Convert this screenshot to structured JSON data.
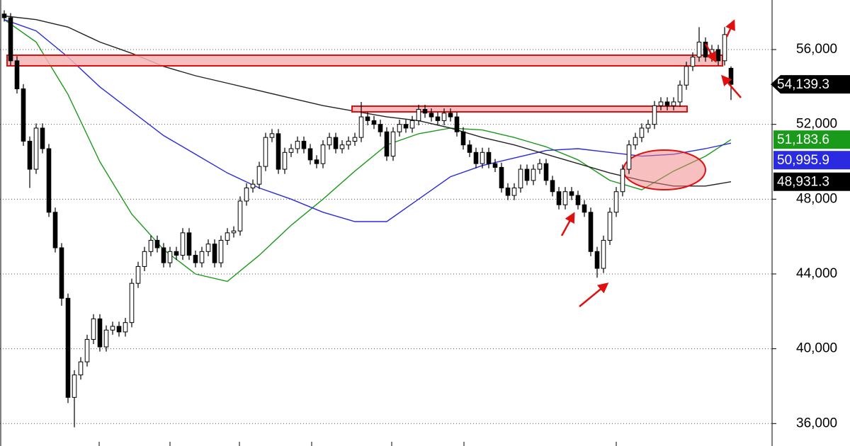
{
  "chart_data": {
    "type": "candlestick",
    "ylim": [
      34800,
      58650
    ],
    "yticks": [
      {
        "value": 36000,
        "label": "36,000"
      },
      {
        "value": 40000,
        "label": "40,000"
      },
      {
        "value": 44000,
        "label": "44,000"
      },
      {
        "value": 48000,
        "label": "48,000"
      },
      {
        "value": 52000,
        "label": "52,000"
      },
      {
        "value": 56000,
        "label": "56,000"
      }
    ],
    "grid": true,
    "up_color": "#ffffff",
    "down_color": "#000000",
    "open": [
      57900,
      57700,
      55400,
      53900,
      51100,
      49600,
      51800,
      50700,
      47300,
      45400,
      42700,
      37400,
      38600,
      39300,
      40500,
      41600,
      40100,
      41000,
      41200,
      40900,
      41400,
      43500,
      44400,
      45200,
      45800,
      45400,
      44600,
      45200,
      45000,
      46200,
      45000,
      44600,
      45200,
      45600,
      44600,
      45800,
      46200,
      46300,
      47900,
      48600,
      48800,
      49750,
      51300,
      51500,
      49600,
      50500,
      50700,
      51100,
      50700,
      50100,
      49900,
      50900,
      51300,
      50700,
      50900,
      51100,
      51300,
      52400,
      52200,
      52000,
      51600,
      50300,
      51600,
      52000,
      51800,
      52200,
      52800,
      52600,
      52400,
      52200,
      52600,
      52400,
      51600,
      50900,
      50500,
      49900,
      50500,
      49900,
      49700,
      48600,
      48200,
      48600,
      49600,
      49000,
      49600,
      49900,
      49000,
      48400,
      47700,
      48400,
      48200,
      47700,
      47300,
      45200,
      44300,
      45800,
      47300,
      48400,
      49600,
      50900,
      51300,
      51800,
      52000,
      53000,
      53200,
      53000,
      53200,
      54100,
      55100,
      55600,
      56400,
      55600,
      56000,
      55400,
      55000
    ],
    "high": [
      58100,
      57950,
      55650,
      54150,
      51350,
      52050,
      52050,
      50950,
      47550,
      45650,
      42950,
      38850,
      39550,
      40750,
      41850,
      41850,
      41250,
      41450,
      41450,
      41650,
      43750,
      44650,
      45450,
      46050,
      46050,
      45650,
      45450,
      45450,
      46450,
      46450,
      45250,
      45450,
      45850,
      45850,
      46050,
      46450,
      46550,
      48150,
      48850,
      49050,
      50000,
      51550,
      51750,
      51750,
      50750,
      50950,
      51350,
      51350,
      50950,
      50350,
      51150,
      51550,
      51550,
      51150,
      51350,
      51550,
      53200,
      52650,
      52450,
      52250,
      51850,
      51850,
      52250,
      52250,
      52450,
      53050,
      53050,
      52850,
      52650,
      52850,
      52850,
      52650,
      51850,
      51150,
      50750,
      50750,
      50750,
      50150,
      49950,
      48850,
      48850,
      49850,
      49850,
      49850,
      50150,
      50150,
      49250,
      48650,
      48650,
      48650,
      48450,
      47950,
      47550,
      45450,
      46050,
      47550,
      48650,
      49850,
      51150,
      51550,
      52050,
      52250,
      53250,
      53450,
      53450,
      53450,
      54350,
      55350,
      55850,
      57200,
      56650,
      56250,
      56250,
      57200,
      55100
    ],
    "low": [
      57500,
      55150,
      53650,
      50850,
      48600,
      49350,
      50450,
      47050,
      45150,
      42300,
      37100,
      35800,
      38350,
      39050,
      40250,
      39850,
      39850,
      40750,
      40650,
      40650,
      41150,
      43250,
      44150,
      44950,
      45150,
      44350,
      44350,
      44750,
      44750,
      44750,
      44350,
      44350,
      44950,
      44350,
      44350,
      45550,
      45950,
      46050,
      47650,
      48350,
      48550,
      49500,
      51050,
      49350,
      49350,
      50250,
      50450,
      50450,
      49850,
      49650,
      49650,
      50650,
      50450,
      50450,
      50650,
      50850,
      51050,
      51950,
      51750,
      51350,
      50050,
      50050,
      51350,
      51550,
      51550,
      51950,
      52350,
      52150,
      51950,
      51950,
      52150,
      51350,
      50650,
      50250,
      49650,
      49650,
      49650,
      49450,
      48350,
      47950,
      47950,
      48350,
      48750,
      48750,
      49350,
      48750,
      48150,
      47450,
      47450,
      47950,
      47450,
      47050,
      44950,
      43800,
      44050,
      45550,
      47050,
      48150,
      49350,
      50650,
      51050,
      51550,
      51750,
      52750,
      52750,
      52750,
      52950,
      53850,
      54850,
      55350,
      55350,
      55350,
      55150,
      55150,
      53300
    ],
    "close": [
      57700,
      55400,
      53900,
      51100,
      49600,
      51800,
      50700,
      47300,
      45400,
      42700,
      37400,
      38600,
      39300,
      40500,
      41600,
      40100,
      41000,
      41200,
      40900,
      41400,
      43500,
      44400,
      45200,
      45800,
      45400,
      44600,
      45200,
      45000,
      46200,
      45000,
      44600,
      45200,
      45600,
      44600,
      45800,
      46200,
      46300,
      47900,
      48600,
      48800,
      49750,
      51300,
      51500,
      49600,
      50500,
      50700,
      51100,
      50700,
      50100,
      49900,
      50900,
      51300,
      50700,
      50900,
      51100,
      51300,
      52400,
      52200,
      52000,
      51600,
      50300,
      51600,
      52000,
      51800,
      52200,
      52800,
      52600,
      52400,
      52200,
      52600,
      52400,
      51600,
      50900,
      50500,
      49900,
      50500,
      49900,
      49700,
      48600,
      48200,
      48600,
      49600,
      49000,
      49600,
      49900,
      49000,
      48400,
      47700,
      48400,
      48200,
      47700,
      47300,
      45200,
      44300,
      45800,
      47300,
      48400,
      49600,
      50900,
      51300,
      51800,
      52000,
      53000,
      53200,
      53000,
      53200,
      54100,
      55100,
      55600,
      56400,
      55600,
      56000,
      55400,
      56800,
      54139.3
    ],
    "lines": [
      {
        "color": "#1a9a1a",
        "x": [
          1,
          6,
          11,
          16,
          21,
          26,
          31,
          36,
          41,
          46,
          51,
          56,
          61,
          66,
          71,
          76,
          81,
          86,
          91,
          96,
          101,
          106,
          111,
          115
        ],
        "values": [
          57600,
          56400,
          53600,
          50000,
          47200,
          45300,
          44000,
          43600,
          45000,
          46600,
          48000,
          49500,
          50900,
          51500,
          51800,
          51700,
          51300,
          50800,
          50100,
          49000,
          48500,
          49500,
          50300,
          51183.6
        ]
      },
      {
        "color": "#2a2ae0",
        "x": [
          1,
          6,
          11,
          16,
          21,
          26,
          31,
          36,
          41,
          46,
          51,
          56,
          61,
          66,
          71,
          76,
          81,
          86,
          91,
          96,
          101,
          106,
          111,
          115
        ],
        "values": [
          57600,
          57000,
          55600,
          54000,
          52700,
          51400,
          50400,
          49400,
          48600,
          48000,
          47300,
          46800,
          46800,
          48000,
          49200,
          49800,
          50200,
          50600,
          50700,
          50500,
          50300,
          50400,
          50700,
          50995.9
        ]
      },
      {
        "color": "#222222",
        "x": [
          1,
          6,
          11,
          16,
          21,
          26,
          31,
          36,
          41,
          46,
          51,
          56,
          61,
          66,
          71,
          76,
          81,
          86,
          91,
          96,
          101,
          106,
          111,
          115
        ],
        "values": [
          57800,
          57600,
          57200,
          56400,
          55800,
          55100,
          54600,
          54200,
          53800,
          53400,
          53000,
          52700,
          52400,
          52200,
          51800,
          51300,
          50900,
          50400,
          49900,
          49400,
          49000,
          48700,
          48700,
          48931.3
        ]
      }
    ],
    "tags": [
      {
        "value": 54139.3,
        "label": "54,139.3",
        "color": "#000000"
      },
      {
        "value": 51183.6,
        "label": "51,183.6",
        "color": "#1a9a1a"
      },
      {
        "value": 50995.9,
        "label": "50,995.9",
        "color": "#2a2ae0"
      },
      {
        "value": 48931.3,
        "label": "48,931.3",
        "color": "#000000"
      }
    ]
  }
}
